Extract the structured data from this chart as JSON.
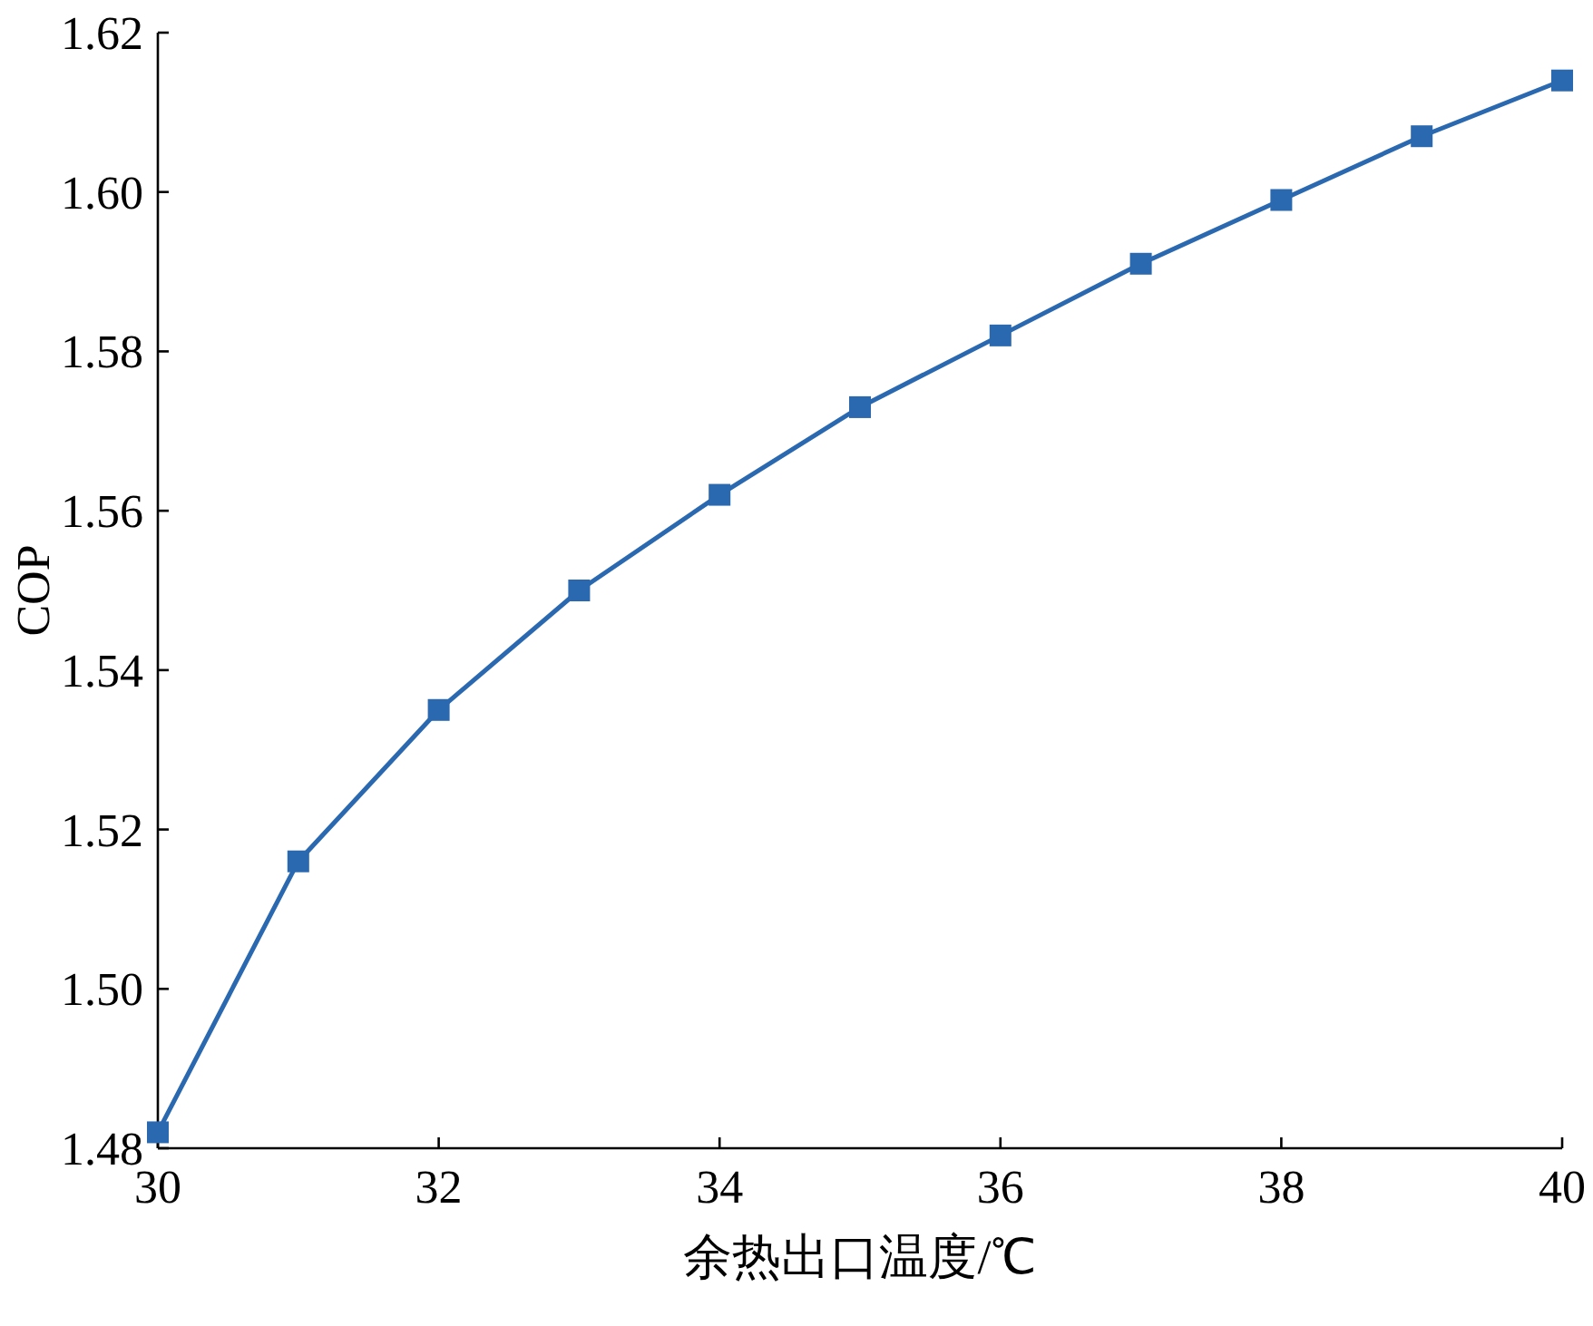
{
  "chart_data": {
    "type": "line",
    "xlabel": "余热出口温度/℃",
    "ylabel": "COP",
    "x": [
      30,
      31,
      32,
      33,
      34,
      35,
      36,
      37,
      38,
      39,
      40
    ],
    "series": [
      {
        "color": "#2a68b0",
        "values": [
          1.482,
          1.516,
          1.535,
          1.55,
          1.562,
          1.573,
          1.582,
          1.591,
          1.599,
          1.607,
          1.614
        ]
      }
    ],
    "marker": "square",
    "line_style": "solid",
    "xlim": [
      30,
      40
    ],
    "ylim": [
      1.48,
      1.62
    ],
    "xticks": [
      30,
      32,
      34,
      36,
      38,
      40
    ],
    "yticks": [
      {
        "value": 1.48,
        "label": "1.48"
      },
      {
        "value": 1.5,
        "label": "1.50"
      },
      {
        "value": 1.52,
        "label": "1.52"
      },
      {
        "value": 1.54,
        "label": "1.54"
      },
      {
        "value": 1.56,
        "label": "1.56"
      },
      {
        "value": 1.58,
        "label": "1.58"
      },
      {
        "value": 1.6,
        "label": "1.60"
      },
      {
        "value": 1.62,
        "label": "1.62"
      }
    ]
  }
}
